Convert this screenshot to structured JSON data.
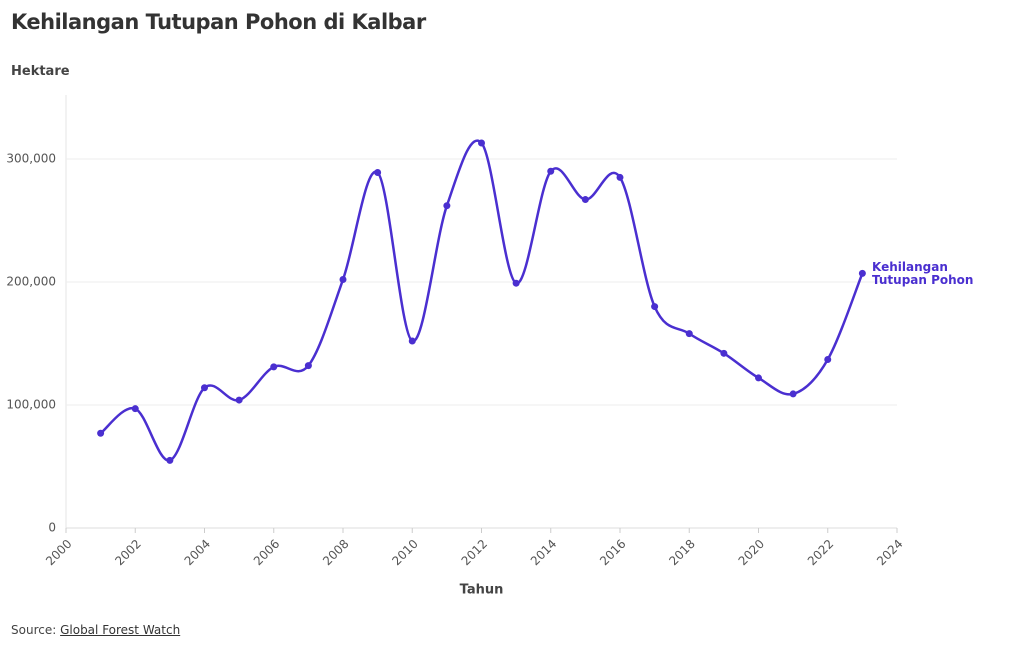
{
  "chart_data": {
    "type": "line",
    "title": "Kehilangan Tutupan Pohon di Kalbar",
    "y_label": "Hektare",
    "x_label": "Tahun",
    "source": {
      "label": "Source:",
      "link": "Global Forest Watch"
    },
    "x": [
      2001,
      2002,
      2003,
      2004,
      2005,
      2006,
      2007,
      2008,
      2009,
      2010,
      2011,
      2012,
      2013,
      2014,
      2015,
      2016,
      2017,
      2018,
      2019,
      2020,
      2021,
      2022,
      2023
    ],
    "series": [
      {
        "name": "Kehilangan Tutupan Pohon",
        "color": "#4a2fd0",
        "values": [
          77000,
          97000,
          55000,
          114000,
          104000,
          131000,
          132000,
          202000,
          289000,
          152000,
          262000,
          313000,
          199000,
          290000,
          267000,
          285000,
          180000,
          158000,
          142000,
          122000,
          109000,
          137000,
          207000
        ]
      }
    ],
    "xlim": [
      2000,
      2024
    ],
    "xticks": [
      2000,
      2002,
      2004,
      2006,
      2008,
      2010,
      2012,
      2014,
      2016,
      2018,
      2020,
      2022,
      2024
    ],
    "ylim": [
      0,
      352000
    ],
    "yticks": [
      0,
      {
        "value": 100000,
        "label": "100,000"
      },
      {
        "value": 200000,
        "label": "200,000"
      },
      {
        "value": 300000,
        "label": "300,000"
      }
    ],
    "grid": true
  }
}
